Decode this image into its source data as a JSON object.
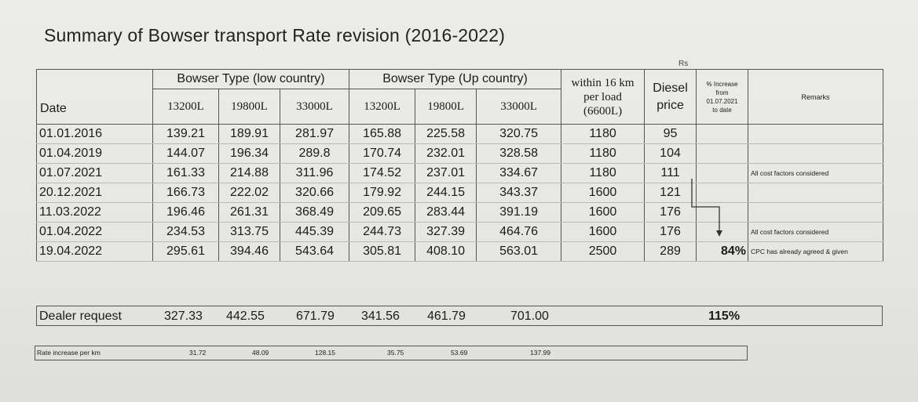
{
  "title": "Summary of Bowser transport Rate  revision (2016-2022)",
  "currency_label": "Rs",
  "header": {
    "date": "Date",
    "low_country": "Bowser Type (low country)",
    "up_country": "Bowser Type (Up country)",
    "capacities": [
      "13200L",
      "19800L",
      "33000L",
      "13200L",
      "19800L",
      "33000L"
    ],
    "within_16km": [
      "within 16 km",
      "per load",
      "(6600L)"
    ],
    "diesel": [
      "Diesel",
      "price"
    ],
    "pct_increase": [
      "% Increase",
      "from",
      "01.07.2021",
      "to date"
    ],
    "remarks": "Remarks"
  },
  "rows": [
    {
      "date": "01.01.2016",
      "values": [
        "139.21",
        "189.91",
        "281.97",
        "165.88",
        "225.58",
        "320.75"
      ],
      "within": "1180",
      "diesel": "95",
      "pct": "",
      "remark": ""
    },
    {
      "date": "01.04.2019",
      "values": [
        "144.07",
        "196.34",
        "289.8",
        "170.74",
        "232.01",
        "328.58"
      ],
      "within": "1180",
      "diesel": "104",
      "pct": "",
      "remark": ""
    },
    {
      "date": "01.07.2021",
      "values": [
        "161.33",
        "214.88",
        "311.96",
        "174.52",
        "237.01",
        "334.67"
      ],
      "within": "1180",
      "diesel": "111",
      "pct": "",
      "remark": "All cost factors considered"
    },
    {
      "date": "20.12.2021",
      "values": [
        "166.73",
        "222.02",
        "320.66",
        "179.92",
        "244.15",
        "343.37"
      ],
      "within": "1600",
      "diesel": "121",
      "pct": "",
      "remark": ""
    },
    {
      "date": "11.03.2022",
      "values": [
        "196.46",
        "261.31",
        "368.49",
        "209.65",
        "283.44",
        "391.19"
      ],
      "within": "1600",
      "diesel": "176",
      "pct": "",
      "remark": ""
    },
    {
      "date": "01.04.2022",
      "values": [
        "234.53",
        "313.75",
        "445.39",
        "244.73",
        "327.39",
        "464.76"
      ],
      "within": "1600",
      "diesel": "176",
      "pct": "",
      "remark": "All cost factors considered"
    },
    {
      "date": "19.04.2022",
      "values": [
        "295.61",
        "394.46",
        "543.64",
        "305.81",
        "408.10",
        "563.01"
      ],
      "within": "2500",
      "diesel": "289",
      "pct": "84%",
      "remark": "CPC has already agreed & given"
    }
  ],
  "dealer_request": {
    "label": "Dealer request",
    "values": [
      "327.33",
      "442.55",
      "671.79",
      "341.56",
      "461.79",
      "701.00"
    ],
    "pct": "115%"
  },
  "rate_increase_per_km": {
    "label": "Rate increase per km",
    "values": [
      "31.72",
      "48.09",
      "128.15",
      "35.75",
      "53.69",
      "137.99"
    ]
  }
}
